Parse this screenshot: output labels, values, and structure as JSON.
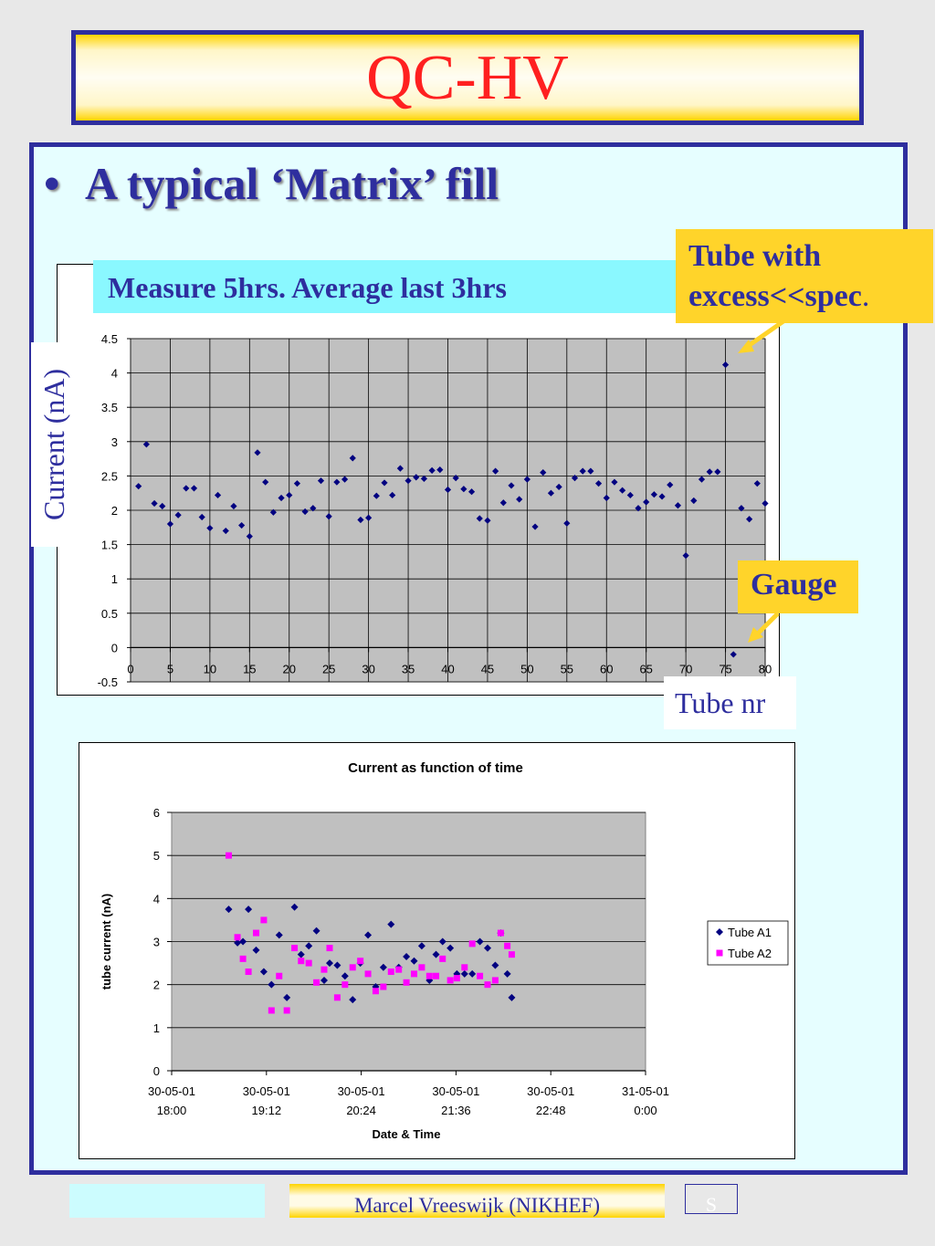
{
  "slide": {
    "title": "QC-HV",
    "bullet": "A typical ‘Matrix’ fill",
    "bullet_symbol": "•",
    "measure_note": "Measure 5hrs. Average last 3hrs",
    "y_label_overlay": "Current (nA)",
    "tube_excess_note": "Tube with excess<<spec",
    "tube_excess_note_suffix": ".",
    "gauge_note": "Gauge",
    "tube_nr_label": "Tube nr",
    "footer_author": "Marcel Vreeswijk (NIKHEF)",
    "footer_page": "S"
  },
  "colors": {
    "title": "#ff2020",
    "navy": "#2e2e9e",
    "plot_bg": "#c0c0c0",
    "marker_a1": "#000080",
    "marker_a2": "#ff00ff",
    "note_bg": "#ffd42a",
    "measure_bg": "#8af8ff"
  },
  "chart_data": [
    {
      "type": "scatter",
      "marker": "diamond",
      "grid": true,
      "xlim": [
        0,
        80
      ],
      "ylim": [
        -0.5,
        4.5
      ],
      "x_ticks": [
        0,
        5,
        10,
        15,
        20,
        25,
        30,
        35,
        40,
        45,
        50,
        55,
        60,
        65,
        70,
        75,
        80
      ],
      "y_ticks": [
        -0.5,
        0,
        0.5,
        1,
        1.5,
        2,
        2.5,
        3,
        3.5,
        4,
        4.5
      ],
      "y_tick_labels": [
        "-0.5",
        "0",
        "0.5",
        "1",
        "1.5",
        "2",
        "2.5",
        "3",
        "3.5",
        "4",
        "4.5"
      ],
      "series": [
        {
          "x": [
            1,
            2,
            3,
            4,
            5,
            6,
            7,
            8,
            9,
            10,
            11,
            12,
            13,
            14,
            15,
            16,
            17,
            18,
            19,
            20,
            21,
            22,
            23,
            24,
            25,
            26,
            27,
            28,
            29,
            30,
            31,
            32,
            33,
            34,
            35,
            36,
            37,
            38,
            39,
            40,
            41,
            42,
            43,
            44,
            45,
            46,
            47,
            48,
            49,
            50,
            51,
            52,
            53,
            54,
            55,
            56,
            57,
            58,
            59,
            60,
            61,
            62,
            63,
            64,
            65,
            66,
            67,
            68,
            69,
            70,
            71,
            72,
            73,
            74,
            75,
            76,
            77,
            78,
            79,
            80
          ],
          "y": [
            2.35,
            2.96,
            2.1,
            2.06,
            1.8,
            1.93,
            2.32,
            2.32,
            1.9,
            1.74,
            2.22,
            1.7,
            2.06,
            1.78,
            1.62,
            2.84,
            2.41,
            1.97,
            2.18,
            2.22,
            2.39,
            1.98,
            2.03,
            2.43,
            1.91,
            2.41,
            2.45,
            2.76,
            1.86,
            1.89,
            2.21,
            2.4,
            2.22,
            2.61,
            2.43,
            2.48,
            2.46,
            2.58,
            2.59,
            2.3,
            2.47,
            2.31,
            2.27,
            1.88,
            1.85,
            2.57,
            2.11,
            2.36,
            2.16,
            2.45,
            1.76,
            2.55,
            2.25,
            2.34,
            1.81,
            2.47,
            2.57,
            2.57,
            2.39,
            2.18,
            2.41,
            2.29,
            2.22,
            2.03,
            2.12,
            2.23,
            2.2,
            2.37,
            2.07,
            1.34,
            2.14,
            2.45,
            2.56,
            2.56,
            4.12,
            -0.1,
            2.03,
            1.87,
            2.39,
            2.1
          ]
        }
      ]
    },
    {
      "type": "scatter",
      "title": "Current as function of time",
      "xlabel": "Date & Time",
      "ylabel": "tube current (nA)",
      "grid": true,
      "legend": "right",
      "xlim": [
        0,
        6
      ],
      "ylim": [
        0,
        6
      ],
      "x_tick_labels": [
        [
          "30-05-01",
          "18:00"
        ],
        [
          "30-05-01",
          "19:12"
        ],
        [
          "30-05-01",
          "20:24"
        ],
        [
          "30-05-01",
          "21:36"
        ],
        [
          "30-05-01",
          "22:48"
        ],
        [
          "31-05-01",
          "0:00"
        ]
      ],
      "y_ticks": [
        0,
        1,
        2,
        3,
        4,
        5,
        6
      ],
      "series": [
        {
          "name": "Tube A1",
          "marker": "diamond",
          "x": [
            "30-05-01 18:52",
            "30-05-01 19:00",
            "30-05-01 19:05",
            "30-05-01 19:10",
            "30-05-01 19:17",
            "30-05-01 19:24",
            "30-05-01 19:31",
            "30-05-01 19:38",
            "30-05-01 19:45",
            "30-05-01 19:52",
            "30-05-01 19:58",
            "30-05-01 20:05",
            "30-05-01 20:12",
            "30-05-01 20:19",
            "30-05-01 20:24",
            "30-05-01 20:31",
            "30-05-01 20:38",
            "30-05-01 20:45",
            "30-05-01 20:52",
            "30-05-01 20:59",
            "30-05-01 21:06",
            "30-05-01 21:13",
            "30-05-01 21:20",
            "30-05-01 21:27",
            "30-05-01 21:34",
            "30-05-01 21:41",
            "30-05-01 21:48",
            "30-05-01 21:55",
            "30-05-01 22:01",
            "30-05-01 22:07",
            "30-05-01 22:14",
            "30-05-01 22:20",
            "30-05-01 22:27",
            "30-05-01 22:34",
            "30-05-01 22:41",
            "30-05-01 22:48",
            "30-05-01 22:55",
            "30-05-01 23:00",
            "30-05-01 23:06",
            "30-05-01 23:10"
          ],
          "y": [
            3.75,
            2.97,
            3.0,
            3.75,
            2.8,
            2.3,
            2.0,
            3.15,
            1.7,
            3.8,
            2.7,
            2.9,
            3.25,
            2.1,
            2.5,
            2.45,
            2.2,
            1.65,
            2.5,
            3.15,
            1.95,
            2.4,
            3.4,
            2.4,
            2.65,
            2.55,
            2.9,
            2.1,
            2.7,
            3.0,
            2.85,
            2.25,
            2.25,
            2.25,
            3.0,
            2.85,
            2.45,
            3.2,
            2.25,
            1.7
          ]
        },
        {
          "name": "Tube A2",
          "marker": "square",
          "x": [
            "30-05-01 18:52",
            "30-05-01 19:00",
            "30-05-01 19:05",
            "30-05-01 19:10",
            "30-05-01 19:17",
            "30-05-01 19:24",
            "30-05-01 19:31",
            "30-05-01 19:38",
            "30-05-01 19:45",
            "30-05-01 19:52",
            "30-05-01 19:58",
            "30-05-01 20:05",
            "30-05-01 20:12",
            "30-05-01 20:19",
            "30-05-01 20:24",
            "30-05-01 20:31",
            "30-05-01 20:38",
            "30-05-01 20:45",
            "30-05-01 20:52",
            "30-05-01 20:59",
            "30-05-01 21:06",
            "30-05-01 21:13",
            "30-05-01 21:20",
            "30-05-01 21:27",
            "30-05-01 21:34",
            "30-05-01 21:41",
            "30-05-01 21:48",
            "30-05-01 21:55",
            "30-05-01 22:01",
            "30-05-01 22:07",
            "30-05-01 22:14",
            "30-05-01 22:20",
            "30-05-01 22:27",
            "30-05-01 22:34",
            "30-05-01 22:41",
            "30-05-01 22:48",
            "30-05-01 22:55",
            "30-05-01 23:00",
            "30-05-01 23:06",
            "30-05-01 23:10"
          ],
          "y": [
            5.0,
            3.1,
            2.6,
            2.3,
            3.2,
            3.5,
            1.4,
            2.2,
            1.4,
            2.85,
            2.55,
            2.5,
            2.05,
            2.35,
            2.85,
            1.7,
            2.0,
            2.4,
            2.55,
            2.25,
            1.85,
            1.95,
            2.3,
            2.35,
            2.05,
            2.25,
            2.4,
            2.2,
            2.2,
            2.6,
            2.1,
            2.15,
            2.4,
            2.95,
            2.2,
            2.0,
            2.1,
            3.2,
            2.9,
            2.7
          ]
        }
      ]
    }
  ]
}
